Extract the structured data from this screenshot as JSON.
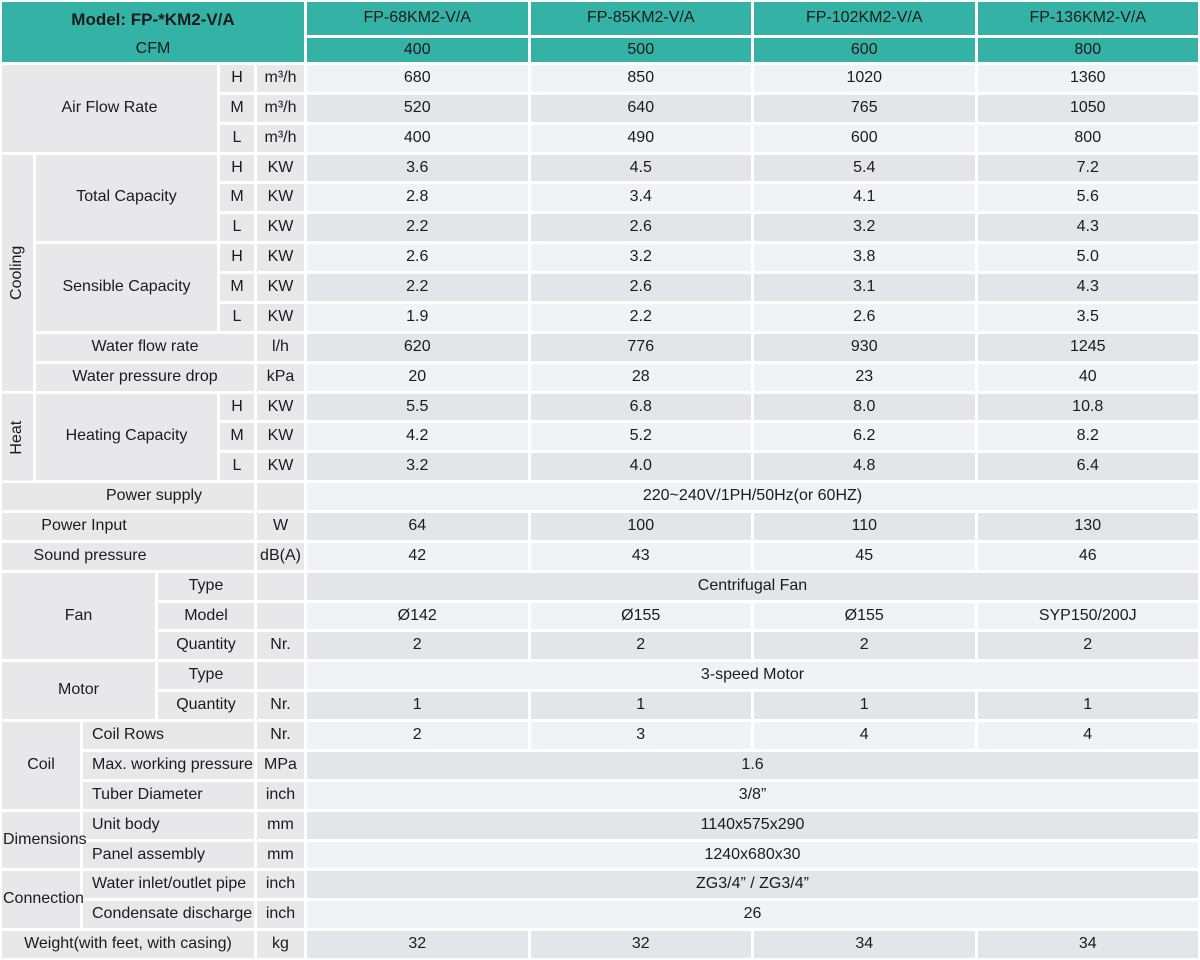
{
  "header": {
    "model_label": "Model: FP-*KM2-V/A",
    "cfm_label": "CFM",
    "model_columns": [
      "FP-68KM2-V/A",
      "FP-85KM2-V/A",
      "FP-102KM2-V/A",
      "FP-136KM2-V/A"
    ],
    "cfm_values": [
      "400",
      "500",
      "600",
      "800"
    ]
  },
  "groups": {
    "air_flow": "Air Flow Rate",
    "cooling": "Cooling",
    "total_capacity": "Total Capacity",
    "sensible_capacity": "Sensible Capacity",
    "heat": "Heat",
    "heating_capacity": "Heating Capacity",
    "fan": "Fan",
    "motor": "Motor",
    "coil": "Coil",
    "dimensions": "Dimensions",
    "connection": "Connection"
  },
  "rows": [
    {
      "speed": "H",
      "unit": "m³/h",
      "values": [
        "680",
        "850",
        "1020",
        "1360"
      ]
    },
    {
      "speed": "M",
      "unit": "m³/h",
      "values": [
        "520",
        "640",
        "765",
        "1050"
      ]
    },
    {
      "speed": "L",
      "unit": "m³/h",
      "values": [
        "400",
        "490",
        "600",
        "800"
      ]
    },
    {
      "speed": "H",
      "unit": "KW",
      "values": [
        "3.6",
        "4.5",
        "5.4",
        "7.2"
      ]
    },
    {
      "speed": "M",
      "unit": "KW",
      "values": [
        "2.8",
        "3.4",
        "4.1",
        "5.6"
      ]
    },
    {
      "speed": "L",
      "unit": "KW",
      "values": [
        "2.2",
        "2.6",
        "3.2",
        "4.3"
      ]
    },
    {
      "speed": "H",
      "unit": "KW",
      "values": [
        "2.6",
        "3.2",
        "3.8",
        "5.0"
      ]
    },
    {
      "speed": "M",
      "unit": "KW",
      "values": [
        "2.2",
        "2.6",
        "3.1",
        "4.3"
      ]
    },
    {
      "speed": "L",
      "unit": "KW",
      "values": [
        "1.9",
        "2.2",
        "2.6",
        "3.5"
      ]
    },
    {
      "label": "Water flow rate",
      "unit": "l/h",
      "values": [
        "620",
        "776",
        "930",
        "1245"
      ]
    },
    {
      "label": "Water pressure drop",
      "unit": "kPa",
      "values": [
        "20",
        "28",
        "23",
        "40"
      ]
    },
    {
      "speed": "H",
      "unit": "KW",
      "values": [
        "5.5",
        "6.8",
        "8.0",
        "10.8"
      ]
    },
    {
      "speed": "M",
      "unit": "KW",
      "values": [
        "4.2",
        "5.2",
        "6.2",
        "8.2"
      ]
    },
    {
      "speed": "L",
      "unit": "KW",
      "values": [
        "3.2",
        "4.0",
        "4.8",
        "6.4"
      ]
    },
    {
      "label": "Power supply",
      "unit": "",
      "merged": "220~240V/1PH/50Hz(or 60HZ)"
    },
    {
      "label": "Power Input",
      "unit": "W",
      "values": [
        "64",
        "100",
        "110",
        "130"
      ]
    },
    {
      "label": "Sound pressure",
      "unit": "dB(A)",
      "values": [
        "42",
        "43",
        "45",
        "46"
      ]
    },
    {
      "label": "Type",
      "unit": "",
      "merged": "Centrifugal Fan"
    },
    {
      "label": "Model",
      "unit": "",
      "values": [
        "Ø142",
        "Ø155",
        "Ø155",
        "SYP150/200J"
      ]
    },
    {
      "label": "Quantity",
      "unit": "Nr.",
      "values": [
        "2",
        "2",
        "2",
        "2"
      ]
    },
    {
      "label": "Type",
      "unit": "",
      "merged": "3-speed Motor"
    },
    {
      "label": "Quantity",
      "unit": "Nr.",
      "values": [
        "1",
        "1",
        "1",
        "1"
      ]
    },
    {
      "label": "Coil Rows",
      "unit": "Nr.",
      "values": [
        "2",
        "3",
        "4",
        "4"
      ]
    },
    {
      "label": "Max. working pressure",
      "unit": "MPa",
      "merged": "1.6"
    },
    {
      "label": "Tuber Diameter",
      "unit": "inch",
      "merged": "3/8”"
    },
    {
      "label": "Unit body",
      "unit": "mm",
      "merged": "1140x575x290"
    },
    {
      "label": "Panel assembly",
      "unit": "mm",
      "merged": "1240x680x30"
    },
    {
      "label": "Water inlet/outlet pipe",
      "unit": "inch",
      "merged": "ZG3/4” / ZG3/4”"
    },
    {
      "label": "Condensate discharge",
      "unit": "inch",
      "merged": "26"
    },
    {
      "label": "Weight(with feet, with casing)",
      "unit": "kg",
      "values": [
        "32",
        "32",
        "34",
        "34"
      ]
    }
  ],
  "colors": {
    "accent_teal": "#35b2a6",
    "label_bg": "#e8e8ea",
    "row_light": "#eff3f6",
    "row_gray": "#e3e5e8",
    "text": "#1b1b1b",
    "grid_line": "#ffffff"
  }
}
